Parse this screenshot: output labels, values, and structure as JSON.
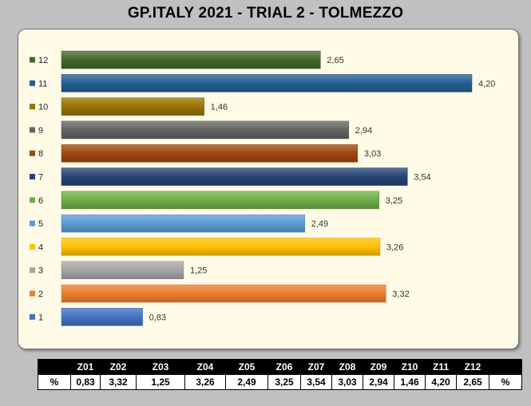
{
  "title": "GP.ITALY 2021 - TRIAL 2 - TOLMEZZO",
  "chart_data": {
    "type": "bar",
    "orientation": "horizontal",
    "categories": [
      "1",
      "2",
      "3",
      "4",
      "5",
      "6",
      "7",
      "8",
      "9",
      "10",
      "11",
      "12"
    ],
    "values": [
      0.83,
      3.32,
      1.25,
      3.26,
      2.49,
      3.25,
      3.54,
      3.03,
      2.94,
      1.46,
      4.2,
      2.65
    ],
    "value_labels": [
      "0,83",
      "3,32",
      "1,25",
      "3,26",
      "2,49",
      "3,25",
      "3,54",
      "3,03",
      "2,94",
      "1,46",
      "4,20",
      "2,65"
    ],
    "colors": [
      "#4472c4",
      "#ed7d31",
      "#a5a5a5",
      "#ffc000",
      "#5b9bd5",
      "#70ad47",
      "#264478",
      "#9e480e",
      "#636363",
      "#997300",
      "#255e91",
      "#43682b"
    ],
    "xlim": [
      0,
      4.2
    ],
    "grid": false,
    "legend": "none"
  },
  "table": {
    "headers": [
      "",
      "Z01",
      "Z02",
      "Z03",
      "Z04",
      "Z05",
      "Z06",
      "Z07",
      "Z08",
      "Z09",
      "Z10",
      "Z11",
      "Z12",
      ""
    ],
    "row_label": "%",
    "values": [
      "0,83",
      "3,32",
      "1,25",
      "3,26",
      "2,49",
      "3,25",
      "3,54",
      "3,03",
      "2,94",
      "1,46",
      "4,20",
      "2,65"
    ],
    "row_suffix": "%"
  }
}
